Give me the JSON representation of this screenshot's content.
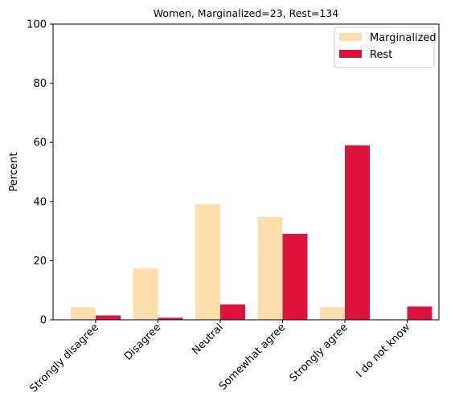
{
  "chart_data": {
    "type": "bar",
    "title": "Women, Marginalized=23, Rest=134",
    "xlabel": "",
    "ylabel": "Percent",
    "ylim": [
      0,
      100
    ],
    "yticks": [
      "0",
      "20",
      "40",
      "60",
      "80",
      "100"
    ],
    "categories": [
      "Strongly disagree",
      "Disagree",
      "Neutral",
      "Somewhat agree",
      "Strongly agree",
      "I do not know"
    ],
    "series": [
      {
        "name": "Marginalized",
        "color": "#ffdead",
        "values": [
          4.3,
          17.4,
          39.1,
          34.8,
          4.3,
          0
        ]
      },
      {
        "name": "Rest",
        "color": "#dc143c",
        "values": [
          1.5,
          0.7,
          5.2,
          29.1,
          59.0,
          4.5
        ]
      }
    ],
    "legend_position": "top-right",
    "grid": false
  }
}
